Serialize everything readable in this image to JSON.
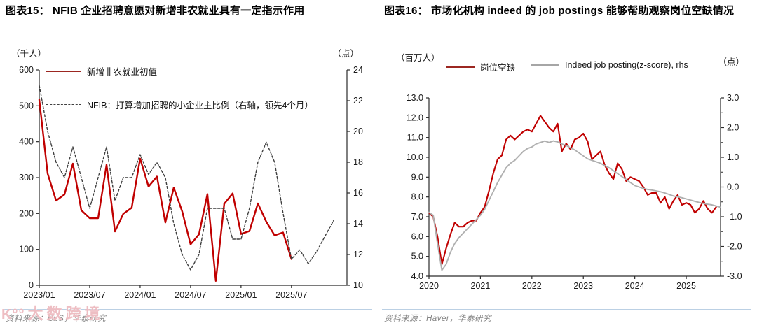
{
  "page": {
    "background": "#FFFFFF"
  },
  "watermark": {
    "logo": "K°°",
    "text": "大数跨境",
    "color": "#DE7D88"
  },
  "chart_data": [
    {
      "id": "fig15",
      "type": "line",
      "title": "图表15：  NFIB 企业招聘意愿对新增非农就业具有一定指示作用",
      "source": "资料来源：BLS，华泰研究",
      "legend_position": "inside-top-left",
      "grid": false,
      "axes": {
        "left": {
          "unit": "（千人）",
          "min": 0,
          "max": 600,
          "step": 100,
          "decimals": 0
        },
        "right": {
          "unit": "（点）",
          "min": 10,
          "max": 24,
          "step": 2,
          "decimals": 0
        }
      },
      "x": {
        "domain": [
          0,
          36.6
        ],
        "ticks": [
          {
            "m": 0,
            "label": "2023/01"
          },
          {
            "m": 6,
            "label": "2023/07"
          },
          {
            "m": 12,
            "label": "2024/01"
          },
          {
            "m": 18,
            "label": "2024/07"
          },
          {
            "m": 24,
            "label": "2025/01"
          },
          {
            "m": 30,
            "label": "2025/07"
          }
        ]
      },
      "series": [
        {
          "name": "新增非农就业初值",
          "axis": "left",
          "style": "solid",
          "width": 2.4,
          "color": "#C00000",
          "legend_color": "#9C2721",
          "start": 0,
          "values": [
            517,
            311,
            236,
            253,
            339,
            209,
            187,
            187,
            336,
            150,
            199,
            216,
            353,
            275,
            303,
            175,
            272,
            206,
            114,
            142,
            254,
            12,
            227,
            256,
            143,
            151,
            228,
            177,
            139,
            147,
            73
          ]
        },
        {
          "name": "NFIB：打算增加招聘的小企业主比例（右轴，领先4个月）",
          "axis": "right",
          "style": "dashed",
          "width": 1.4,
          "color": "#3F3F3F",
          "legend_color": "#3F3F3F",
          "start": 0,
          "values": [
            23,
            20,
            18,
            17,
            19,
            17,
            15,
            17,
            19,
            15.5,
            17,
            17,
            18.5,
            17.2,
            18,
            17,
            14,
            12,
            11,
            12,
            15,
            15,
            15,
            13,
            13,
            15,
            18,
            19.3,
            18,
            14.7,
            11.7,
            12.3,
            11.4,
            12.2,
            13.2,
            14.2
          ]
        }
      ]
    },
    {
      "id": "fig16",
      "type": "line",
      "title": "图表16：  市场化机构 indeed 的 job postings 能够帮助观察岗位空缺情况",
      "source": "资料来源：Haver，华泰研究",
      "legend_position": "top",
      "grid": false,
      "axes": {
        "left": {
          "unit": "（百万人）",
          "min": 4,
          "max": 13,
          "step": 1,
          "decimals": 1
        },
        "right": {
          "unit": "（点）",
          "min": -3,
          "max": 3,
          "step": 1,
          "decimals": 1,
          "minor": 0.5
        }
      },
      "x": {
        "domain": [
          0,
          68
        ],
        "ticks": [
          {
            "m": 0,
            "label": "2020"
          },
          {
            "m": 12,
            "label": "2021"
          },
          {
            "m": 24,
            "label": "2022"
          },
          {
            "m": 36,
            "label": "2023"
          },
          {
            "m": 48,
            "label": "2024"
          },
          {
            "m": 60,
            "label": "2025"
          }
        ]
      },
      "series": [
        {
          "name": "岗位空缺",
          "axis": "left",
          "style": "solid",
          "width": 2.1,
          "color": "#C00000",
          "legend_color": "#9C2721",
          "start": 0,
          "values": [
            7.2,
            7.0,
            6.0,
            4.6,
            5.4,
            6.1,
            6.7,
            6.5,
            6.5,
            6.7,
            6.8,
            6.8,
            7.2,
            7.5,
            8.3,
            9.2,
            9.9,
            10.1,
            10.9,
            11.1,
            10.9,
            11.1,
            11.3,
            11.4,
            11.3,
            11.7,
            12.1,
            11.8,
            11.5,
            11.3,
            11.7,
            10.3,
            10.7,
            10.4,
            10.9,
            11.0,
            11.2,
            10.8,
            9.9,
            10.1,
            10.3,
            9.6,
            9.2,
            8.9,
            9.7,
            9.4,
            8.8,
            9.0,
            8.9,
            8.8,
            8.5,
            8.1,
            8.2,
            8.2,
            7.7,
            8.0,
            7.4,
            7.8,
            8.1,
            7.6,
            7.7,
            7.6,
            7.2,
            7.4,
            7.8,
            7.4,
            7.2,
            7.5
          ]
        },
        {
          "name": "Indeed job posting(z-score), rhs",
          "axis": "right",
          "style": "solid",
          "width": 1.9,
          "color": "#B0B0B0",
          "legend_color": "#A6A6A6",
          "start": 0,
          "values": [
            -0.85,
            -0.95,
            -1.9,
            -2.8,
            -2.6,
            -2.2,
            -1.9,
            -1.7,
            -1.55,
            -1.4,
            -1.25,
            -1.1,
            -0.95,
            -0.75,
            -0.45,
            -0.15,
            0.15,
            0.4,
            0.65,
            0.8,
            0.9,
            1.05,
            1.2,
            1.3,
            1.35,
            1.45,
            1.5,
            1.55,
            1.5,
            1.55,
            1.52,
            1.45,
            1.4,
            1.32,
            1.25,
            1.15,
            1.05,
            0.95,
            0.9,
            0.85,
            0.8,
            0.72,
            0.65,
            0.55,
            0.45,
            0.35,
            0.25,
            0.15,
            0.05,
            0.0,
            -0.05,
            -0.08,
            -0.1,
            -0.13,
            -0.16,
            -0.2,
            -0.25,
            -0.3,
            -0.33,
            -0.36,
            -0.4,
            -0.44,
            -0.48,
            -0.52,
            -0.55,
            -0.58,
            -0.6,
            -0.64,
            -0.68
          ]
        }
      ]
    }
  ]
}
